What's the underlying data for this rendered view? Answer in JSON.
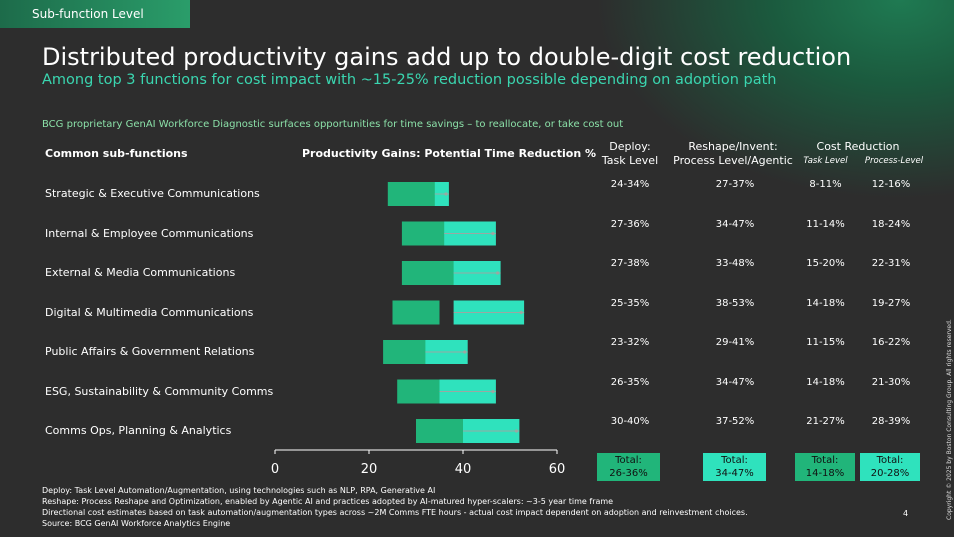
{
  "section_tag": "Sub-function Level",
  "title": "Distributed productivity gains add up to double-digit cost reduction",
  "subtitle": "Among top 3 functions for cost impact with ~15-25% reduction possible depending on adoption path",
  "lead": "BCG proprietary GenAI Workforce Diagnostic surfaces opportunities for time savings – to reallocate, or take cost out",
  "headers": {
    "subfunctions": "Common sub-functions",
    "gains": "Productivity Gains: Potential Time Reduction %",
    "deploy_1": "Deploy:",
    "deploy_2": "Task Level",
    "reshape_1": "Reshape/Invent:",
    "reshape_2": "Process Level/Agentic",
    "cost": "Cost Reduction",
    "cost_task": "Task Level",
    "cost_process": "Process-Level"
  },
  "rows": [
    {
      "label": "Strategic & Executive Communications",
      "deploy": "24-34%",
      "reshape": "27-37%",
      "cost_task": "8-11%",
      "cost_process": "12-16%"
    },
    {
      "label": "Internal & Employee Communications",
      "deploy": "27-36%",
      "reshape": "34-47%",
      "cost_task": "11-14%",
      "cost_process": "18-24%"
    },
    {
      "label": "External & Media Communications",
      "deploy": "27-38%",
      "reshape": "33-48%",
      "cost_task": "15-20%",
      "cost_process": "22-31%"
    },
    {
      "label": "Digital & Multimedia Communications",
      "deploy": "25-35%",
      "reshape": "38-53%",
      "cost_task": "14-18%",
      "cost_process": "19-27%"
    },
    {
      "label": "Public Affairs & Government Relations",
      "deploy": "23-32%",
      "reshape": "29-41%",
      "cost_task": "11-15%",
      "cost_process": "16-22%"
    },
    {
      "label": "ESG, Sustainability & Community Comms",
      "deploy": "26-35%",
      "reshape": "34-47%",
      "cost_task": "14-18%",
      "cost_process": "21-30%"
    },
    {
      "label": "Comms Ops, Planning & Analytics",
      "deploy": "30-40%",
      "reshape": "37-52%",
      "cost_task": "21-27%",
      "cost_process": "28-39%"
    }
  ],
  "totals": {
    "label": "Total:",
    "deploy": "26-36%",
    "reshape": "34-47%",
    "cost_task": "14-18%",
    "cost_process": "20-28%"
  },
  "chart_data": {
    "type": "bar",
    "orientation": "horizontal-range",
    "categories": [
      "Strategic & Executive Communications",
      "Internal & Employee Communications",
      "External & Media Communications",
      "Digital & Multimedia Communications",
      "Public Affairs & Government Relations",
      "ESG, Sustainability & Community Comms",
      "Comms Ops, Planning & Analytics"
    ],
    "series": [
      {
        "name": "Deploy: Task Level",
        "color": "#21b57a",
        "ranges": [
          [
            24,
            34
          ],
          [
            27,
            36
          ],
          [
            27,
            38
          ],
          [
            25,
            35
          ],
          [
            23,
            32
          ],
          [
            26,
            35
          ],
          [
            30,
            40
          ]
        ]
      },
      {
        "name": "Reshape/Invent: Process Level/Agentic",
        "color": "#2fe2bd",
        "ranges": [
          [
            27,
            37
          ],
          [
            34,
            47
          ],
          [
            33,
            48
          ],
          [
            38,
            53
          ],
          [
            29,
            41
          ],
          [
            34,
            47
          ],
          [
            37,
            52
          ]
        ]
      }
    ],
    "xticks": [
      0,
      20,
      40,
      60
    ],
    "xlim": [
      0,
      60
    ],
    "grid": false
  },
  "footnotes": [
    "Deploy: Task Level Automation/Augmentation, using technologies such as NLP, RPA, Generative AI",
    "Reshape: Process Reshape and Optimization, enabled by Agentic AI and practices adopted by AI-matured hyper-scalers: ~3-5 year time frame",
    "Directional cost estimates based on task automation/augmentation types across ~2M Comms FTE hours - actual cost impact dependent on adoption and reinvestment choices.",
    "Source: BCG GenAI Workforce Analytics Engine"
  ],
  "page_number": "4",
  "copyright": "Copyright © 2025 by Boston Consulting Group. All rights reserved."
}
